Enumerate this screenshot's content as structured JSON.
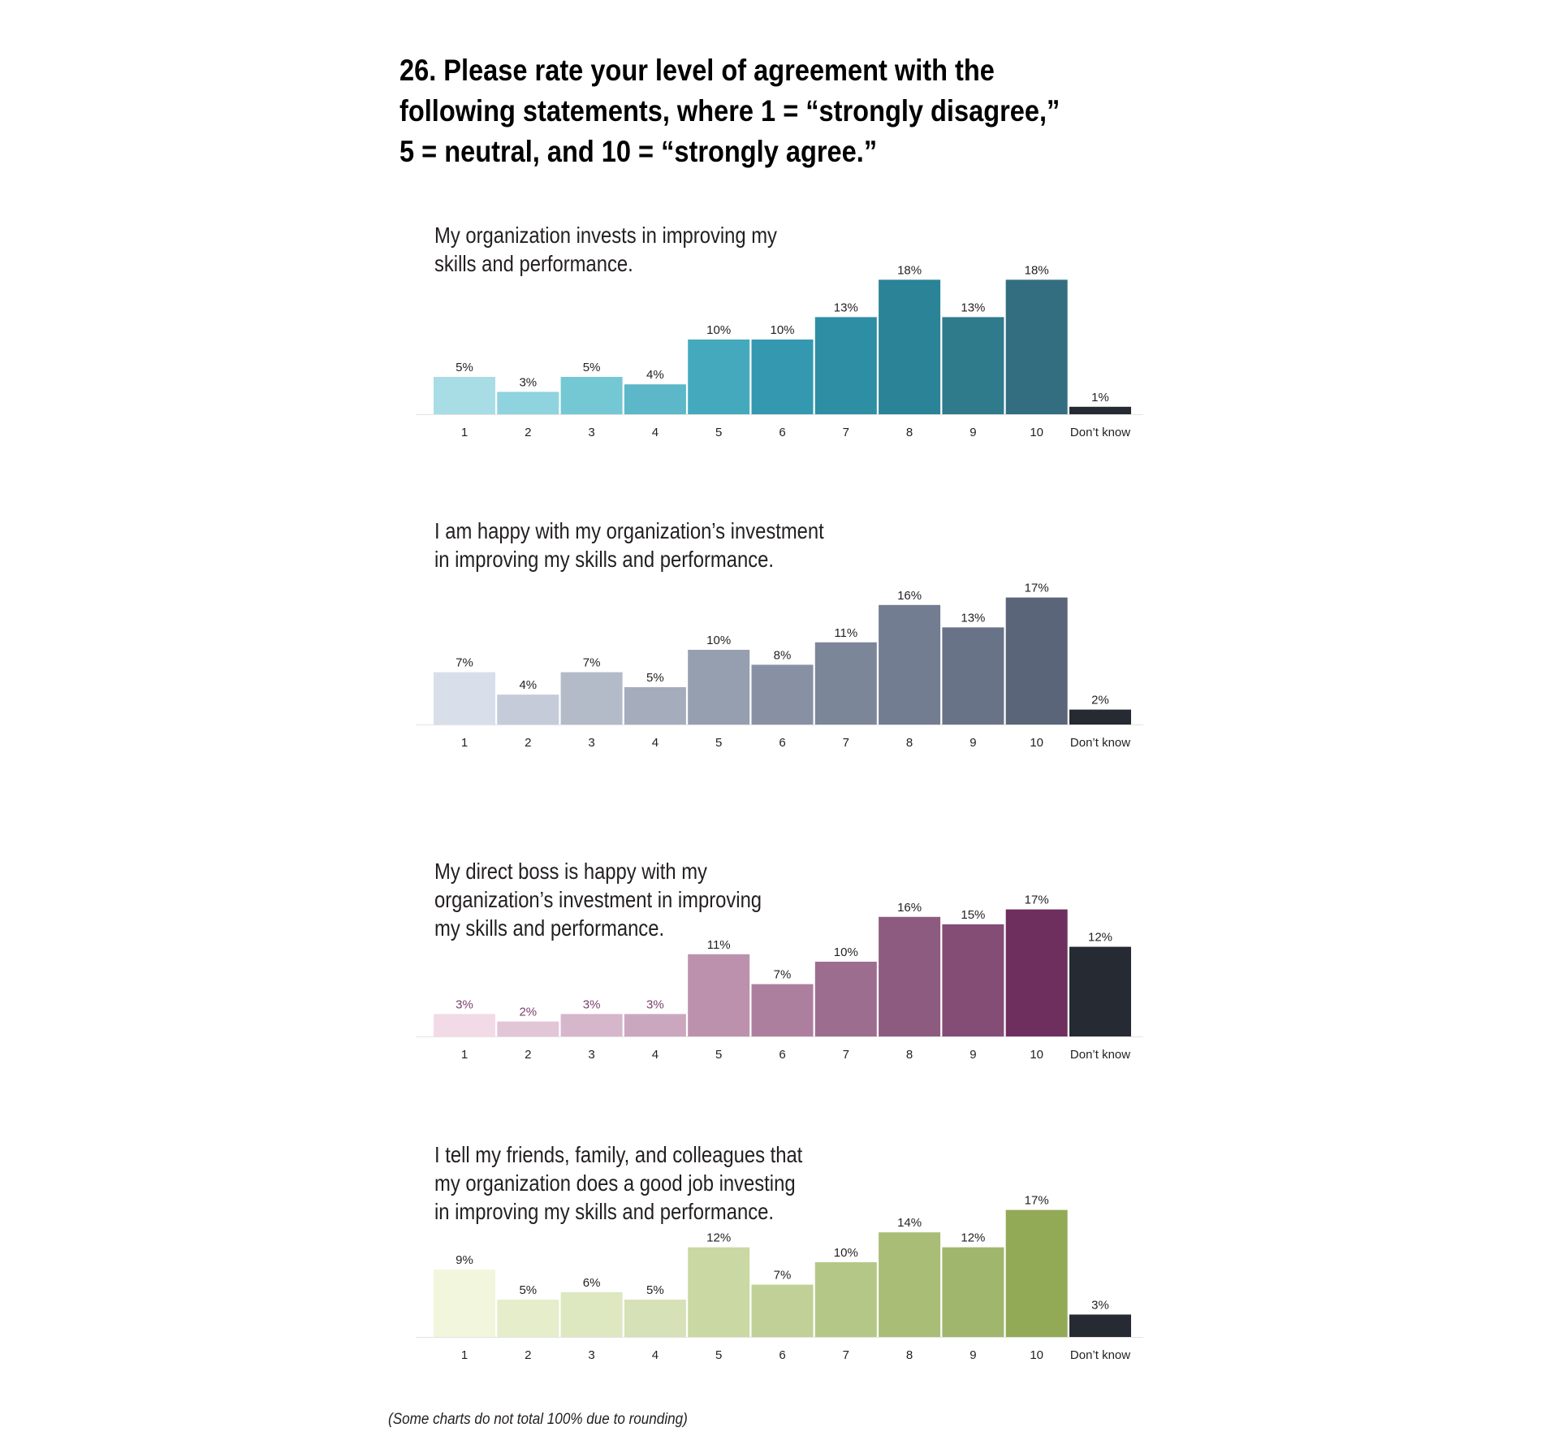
{
  "title_lines": [
    "26. Please rate your level of agreement with the",
    "following statements, where 1 = “strongly disagree,”",
    "5 = neutral, and 10 = “strongly agree.”"
  ],
  "footnote": "(Some charts do not total 100% due to rounding)",
  "chart_data": [
    {
      "type": "bar",
      "title_lines": [
        "My organization invests in improving my",
        "skills and performance."
      ],
      "categories": [
        "1",
        "2",
        "3",
        "4",
        "5",
        "6",
        "7",
        "8",
        "9",
        "10",
        "Don’t know"
      ],
      "values": [
        5,
        3,
        5,
        4,
        10,
        10,
        13,
        18,
        13,
        18,
        1
      ],
      "value_labels": [
        "5%",
        "3%",
        "5%",
        "4%",
        "10%",
        "10%",
        "13%",
        "18%",
        "13%",
        "18%",
        "1%"
      ],
      "colors": [
        "#a9dde5",
        "#8fd3de",
        "#73c8d3",
        "#5cb7c8",
        "#45a9bd",
        "#3498b0",
        "#2d8ea4",
        "#2a8397",
        "#2f7a8b",
        "#336e80",
        "#252a33"
      ],
      "label_color": "#231f20",
      "unit": "%",
      "ylim": [
        0,
        18
      ]
    },
    {
      "type": "bar",
      "title_lines": [
        "I am happy with my organization’s investment",
        "in improving my skills and performance."
      ],
      "categories": [
        "1",
        "2",
        "3",
        "4",
        "5",
        "6",
        "7",
        "8",
        "9",
        "10",
        "Don’t know"
      ],
      "values": [
        7,
        4,
        7,
        5,
        10,
        8,
        11,
        16,
        13,
        17,
        2
      ],
      "value_labels": [
        "7%",
        "4%",
        "7%",
        "5%",
        "10%",
        "8%",
        "11%",
        "16%",
        "13%",
        "17%",
        "2%"
      ],
      "colors": [
        "#d8dfea",
        "#c5cbd8",
        "#b3bac8",
        "#a5adbc",
        "#969fb0",
        "#8891a3",
        "#7c8699",
        "#737d91",
        "#687387",
        "#5b6579",
        "#252a33"
      ],
      "label_color": "#231f20",
      "unit": "%",
      "ylim": [
        0,
        18
      ]
    },
    {
      "type": "bar",
      "title_lines": [
        "My direct boss is happy with my",
        "organization’s investment in improving",
        "my skills and performance."
      ],
      "categories": [
        "1",
        "2",
        "3",
        "4",
        "5",
        "6",
        "7",
        "8",
        "9",
        "10",
        "Don’t know"
      ],
      "values": [
        3,
        2,
        3,
        3,
        11,
        7,
        10,
        16,
        15,
        17,
        12
      ],
      "value_labels": [
        "3%",
        "2%",
        "3%",
        "3%",
        "11%",
        "7%",
        "10%",
        "16%",
        "15%",
        "17%",
        "12%"
      ],
      "colors": [
        "#f2dbe6",
        "#e2c6d8",
        "#d6b6cb",
        "#cba7bf",
        "#bc91ad",
        "#ad7f9f",
        "#9d6d8f",
        "#8e5b80",
        "#834d76",
        "#6e2f5e",
        "#252a33"
      ],
      "label_colors": [
        "#7b3f6e",
        "#7b3f6e",
        "#7b3f6e",
        "#7b3f6e",
        "#231f20",
        "#231f20",
        "#231f20",
        "#231f20",
        "#231f20",
        "#231f20",
        "#231f20"
      ],
      "unit": "%",
      "ylim": [
        0,
        18
      ]
    },
    {
      "type": "bar",
      "title_lines": [
        "I tell my friends, family, and colleagues that",
        "my organization does a good job investing",
        "in improving my skills and performance."
      ],
      "categories": [
        "1",
        "2",
        "3",
        "4",
        "5",
        "6",
        "7",
        "8",
        "9",
        "10",
        "Don’t know"
      ],
      "values": [
        9,
        5,
        6,
        5,
        12,
        7,
        10,
        14,
        12,
        17,
        3
      ],
      "value_labels": [
        "9%",
        "5%",
        "6%",
        "5%",
        "12%",
        "7%",
        "10%",
        "14%",
        "12%",
        "17%",
        "3%"
      ],
      "colors": [
        "#f2f6dc",
        "#e6edcb",
        "#dde7c0",
        "#d6e1b7",
        "#cad8a4",
        "#c0d096",
        "#b5c787",
        "#a9bd77",
        "#a0b66c",
        "#92aa56",
        "#252a33"
      ],
      "label_color": "#231f20",
      "unit": "%",
      "ylim": [
        0,
        18
      ]
    }
  ]
}
